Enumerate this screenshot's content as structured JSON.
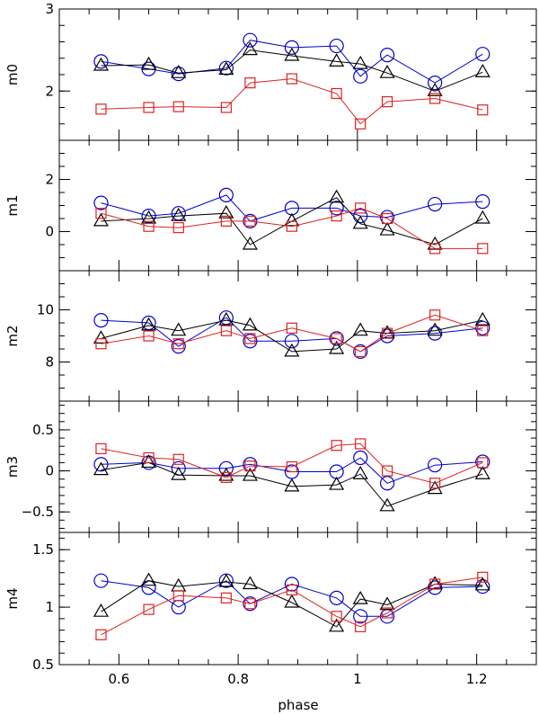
{
  "chart_data": {
    "type": "line",
    "xlabel": "phase",
    "xlim": [
      0.5,
      1.3
    ],
    "xticks": [
      0.6,
      0.8,
      1,
      1.2
    ],
    "xtick_labels": [
      "0.6",
      "0.8",
      "1",
      "1.2"
    ],
    "x": [
      0.57,
      0.65,
      0.7,
      0.78,
      0.82,
      0.89,
      0.965,
      1.005,
      1.05,
      1.13,
      1.21
    ],
    "series_styles": [
      {
        "name": "circles",
        "marker": "circle",
        "color": "#0000cc"
      },
      {
        "name": "triangles",
        "marker": "triangle",
        "color": "#000000"
      },
      {
        "name": "squares",
        "marker": "square",
        "color": "#dd2222"
      }
    ],
    "panels": [
      {
        "ylabel": "m0",
        "ylim": [
          1.4,
          3.0
        ],
        "yticks": [
          2,
          3
        ],
        "ytick_labels": [
          "2",
          "3"
        ],
        "minor_step": 0.2,
        "series": [
          {
            "name": "circles",
            "values": [
              2.36,
              2.27,
              2.21,
              2.28,
              2.62,
              2.53,
              2.55,
              2.18,
              2.44,
              2.1,
              2.45
            ]
          },
          {
            "name": "triangles",
            "values": [
              2.31,
              2.32,
              2.22,
              2.26,
              2.5,
              2.43,
              2.36,
              2.33,
              2.22,
              2.0,
              2.23
            ]
          },
          {
            "name": "squares",
            "values": [
              1.78,
              1.8,
              1.81,
              1.8,
              2.1,
              2.15,
              1.97,
              1.6,
              1.87,
              1.91,
              1.77
            ]
          }
        ]
      },
      {
        "ylabel": "m1",
        "ylim": [
          -1.5,
          3.5
        ],
        "yticks": [
          0,
          2
        ],
        "ytick_labels": [
          "0",
          "2"
        ],
        "minor_step": 0.5,
        "series": [
          {
            "name": "circles",
            "values": [
              1.1,
              0.6,
              0.7,
              1.4,
              0.4,
              0.9,
              0.9,
              0.6,
              0.55,
              1.05,
              1.15
            ]
          },
          {
            "name": "triangles",
            "values": [
              0.4,
              0.5,
              0.6,
              0.7,
              -0.5,
              0.4,
              1.3,
              0.3,
              0.05,
              -0.5,
              0.5
            ]
          },
          {
            "name": "squares",
            "values": [
              0.7,
              0.2,
              0.15,
              0.4,
              0.4,
              0.2,
              0.6,
              0.9,
              0.5,
              -0.65,
              -0.65
            ]
          }
        ]
      },
      {
        "ylabel": "m2",
        "ylim": [
          6.5,
          11.5
        ],
        "yticks": [
          8,
          10
        ],
        "ytick_labels": [
          "8",
          "10"
        ],
        "minor_step": 0.5,
        "series": [
          {
            "name": "circles",
            "values": [
              9.6,
              9.5,
              8.6,
              9.7,
              8.8,
              8.8,
              8.9,
              8.4,
              9.0,
              9.1,
              9.3
            ]
          },
          {
            "name": "triangles",
            "values": [
              8.9,
              9.4,
              9.2,
              9.6,
              9.4,
              8.4,
              8.5,
              9.2,
              9.1,
              9.2,
              9.6
            ]
          },
          {
            "name": "squares",
            "values": [
              8.7,
              9.0,
              8.7,
              9.2,
              8.9,
              9.3,
              8.9,
              8.4,
              9.1,
              9.8,
              9.2
            ]
          }
        ]
      },
      {
        "ylabel": "m3",
        "ylim": [
          -0.75,
          0.85
        ],
        "yticks": [
          -0.5,
          0,
          0.5
        ],
        "ytick_labels": [
          "−0.5",
          "0",
          "0.5"
        ],
        "minor_step": 0.1,
        "series": [
          {
            "name": "circles",
            "values": [
              0.08,
              0.1,
              0.03,
              0.03,
              0.08,
              -0.01,
              -0.01,
              0.16,
              -0.15,
              0.07,
              0.11
            ]
          },
          {
            "name": "triangles",
            "values": [
              0.01,
              0.1,
              -0.05,
              -0.06,
              -0.06,
              -0.19,
              -0.17,
              -0.04,
              -0.43,
              -0.22,
              -0.04
            ]
          },
          {
            "name": "squares",
            "values": [
              0.27,
              0.16,
              0.14,
              -0.08,
              0.06,
              0.05,
              0.31,
              0.33,
              0.0,
              -0.15,
              0.1
            ]
          }
        ]
      },
      {
        "ylabel": "m4",
        "ylim": [
          0.5,
          1.65
        ],
        "yticks": [
          0.5,
          1,
          1.5
        ],
        "ytick_labels": [
          "0.5",
          "1",
          "1.5"
        ],
        "minor_step": 0.1,
        "series": [
          {
            "name": "circles",
            "values": [
              1.23,
              1.17,
              1.0,
              1.23,
              1.03,
              1.2,
              1.08,
              0.92,
              0.92,
              1.17,
              1.18
            ]
          },
          {
            "name": "triangles",
            "values": [
              0.96,
              1.23,
              1.18,
              1.22,
              1.2,
              1.04,
              0.83,
              1.07,
              1.02,
              1.2,
              1.19
            ]
          },
          {
            "name": "squares",
            "values": [
              0.76,
              0.98,
              1.1,
              1.08,
              1.03,
              1.15,
              0.92,
              0.83,
              0.95,
              1.2,
              1.26
            ]
          }
        ]
      }
    ]
  }
}
